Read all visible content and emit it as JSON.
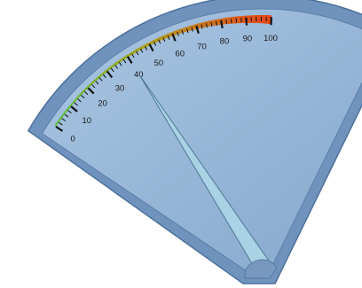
{
  "gauge": {
    "min": 0,
    "max": 100,
    "value": 40,
    "major_tick_labels": [
      "0",
      "10",
      "20",
      "30",
      "40",
      "50",
      "60",
      "70",
      "80",
      "90",
      "100"
    ],
    "colors": {
      "face": "#93b4d6",
      "bezel": "#6f93bd",
      "bezel_edge": "#4d719c",
      "needle": "#a9d3e4",
      "needle_edge": "#4c7896",
      "hub": "#7898c0",
      "scale_low": "#33d04a",
      "scale_mid": "#b0a020",
      "scale_high": "#ff2318"
    },
    "needle_icon": "needle-pointer-icon"
  }
}
